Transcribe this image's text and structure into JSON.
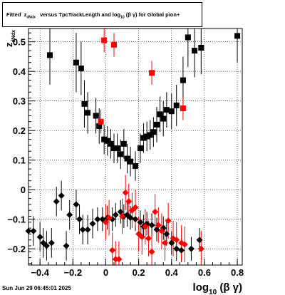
{
  "title": {
    "prefix": "Fitted",
    "z": "z",
    "z_sub": "dNdx",
    "middle": "versus TpcTrackLength and log",
    "log_sub": "10",
    "bg": "(β γ)",
    "suffix": "for Global pion+"
  },
  "footer": "Sun Jun 29 06:45:01 2025",
  "chart_data": {
    "type": "scatter",
    "xlabel": {
      "main": "log",
      "sub": "10",
      "rest": "(β γ)"
    },
    "ylabel": {
      "main": "z",
      "sub": "dNdx"
    },
    "xlim": [
      -0.47,
      0.83
    ],
    "ylim": [
      -0.255,
      0.545
    ],
    "x_ticks": [
      -0.4,
      -0.2,
      0,
      0.2,
      0.4,
      0.6,
      0.8
    ],
    "x_tick_labels": [
      "−0.4",
      "−0.2",
      "0",
      "0.2",
      "0.4",
      "0.6",
      "0.8"
    ],
    "y_ticks": [
      -0.2,
      -0.1,
      0,
      0.1,
      0.2,
      0.3,
      0.4,
      0.5
    ],
    "y_tick_labels": [
      "−0.2",
      "−0.1",
      "0",
      "0.1",
      "0.2",
      "0.3",
      "0.4",
      "0.5"
    ],
    "grid": true,
    "colors": {
      "black": "#000000",
      "red": "#ff0000"
    },
    "series": [
      {
        "marker": "square",
        "color": "#000000",
        "points": [
          [
            -0.34,
            0.455,
            0.1
          ],
          [
            -0.18,
            0.43,
            0.1
          ],
          [
            -0.15,
            0.41,
            0.09
          ],
          [
            -0.13,
            0.29,
            0.08
          ],
          [
            -0.11,
            0.26,
            0.07
          ],
          [
            -0.06,
            0.25,
            0.06
          ],
          [
            -0.04,
            0.215,
            0.06
          ],
          [
            -0.01,
            0.17,
            0.05
          ],
          [
            0.01,
            0.165,
            0.05
          ],
          [
            0.03,
            0.155,
            0.05
          ],
          [
            0.05,
            0.14,
            0.05
          ],
          [
            0.07,
            0.14,
            0.05
          ],
          [
            0.09,
            0.12,
            0.05
          ],
          [
            0.11,
            0.155,
            0.05
          ],
          [
            0.13,
            0.105,
            0.05
          ],
          [
            0.15,
            0.095,
            0.05
          ],
          [
            0.18,
            0.08,
            0.05
          ],
          [
            0.21,
            0.14,
            0.05
          ],
          [
            0.23,
            0.175,
            0.05
          ],
          [
            0.25,
            0.18,
            0.05
          ],
          [
            0.27,
            0.185,
            0.05
          ],
          [
            0.29,
            0.195,
            0.05
          ],
          [
            0.31,
            0.22,
            0.06
          ],
          [
            0.33,
            0.255,
            0.06
          ],
          [
            0.35,
            0.24,
            0.06
          ],
          [
            0.37,
            0.27,
            0.06
          ],
          [
            0.4,
            0.265,
            0.06
          ],
          [
            0.43,
            0.285,
            0.07
          ],
          [
            0.47,
            0.37,
            0.08
          ],
          [
            0.5,
            0.515,
            0.1
          ],
          [
            0.54,
            0.47,
            0.09
          ],
          [
            0.58,
            0.48,
            0.09
          ],
          [
            0.8,
            0.52,
            0.09
          ]
        ]
      },
      {
        "marker": "square",
        "color": "#ff0000",
        "points": [
          [
            -0.01,
            0.505,
            0.04
          ],
          [
            0.05,
            0.49,
            0.04
          ],
          [
            -0.03,
            0.23,
            0.04
          ],
          [
            0.28,
            0.395,
            0.04
          ],
          [
            0.47,
            0.275,
            0.04
          ]
        ]
      },
      {
        "marker": "diamond",
        "color": "#000000",
        "points": [
          [
            -0.47,
            -0.14,
            0.05
          ],
          [
            -0.44,
            -0.14,
            0.05
          ],
          [
            -0.4,
            -0.16,
            0.05
          ],
          [
            -0.38,
            -0.18,
            0.05
          ],
          [
            -0.36,
            -0.19,
            0.05
          ],
          [
            -0.33,
            -0.18,
            0.05
          ],
          [
            -0.3,
            -0.04,
            0.05
          ],
          [
            -0.27,
            -0.02,
            0.05
          ],
          [
            -0.24,
            -0.19,
            0.05
          ],
          [
            -0.22,
            -0.085,
            0.05
          ],
          [
            -0.18,
            -0.05,
            0.05
          ],
          [
            -0.16,
            -0.1,
            0.05
          ],
          [
            -0.14,
            -0.135,
            0.05
          ],
          [
            -0.11,
            -0.135,
            0.05
          ],
          [
            -0.08,
            -0.115,
            0.05
          ],
          [
            -0.05,
            -0.1,
            0.04
          ],
          [
            -0.02,
            -0.1,
            0.04
          ],
          [
            0.01,
            -0.095,
            0.04
          ],
          [
            0.04,
            -0.1,
            0.04
          ],
          [
            0.06,
            -0.085,
            0.04
          ],
          [
            0.09,
            -0.075,
            0.04
          ],
          [
            0.11,
            -0.09,
            0.04
          ],
          [
            0.13,
            -0.085,
            0.04
          ],
          [
            0.15,
            -0.095,
            0.04
          ],
          [
            0.18,
            -0.1,
            0.04
          ],
          [
            0.21,
            -0.11,
            0.04
          ],
          [
            0.23,
            -0.125,
            0.04
          ],
          [
            0.25,
            -0.115,
            0.04
          ],
          [
            0.28,
            -0.12,
            0.04
          ],
          [
            0.31,
            -0.135,
            0.04
          ],
          [
            0.35,
            -0.13,
            0.04
          ],
          [
            0.37,
            -0.15,
            0.04
          ],
          [
            0.4,
            -0.18,
            0.04
          ],
          [
            0.43,
            -0.2,
            0.04
          ],
          [
            0.46,
            -0.205,
            0.04
          ],
          [
            0.52,
            -0.2,
            0.04
          ],
          [
            0.57,
            -0.17,
            0.04
          ]
        ]
      },
      {
        "marker": "diamond",
        "color": "#ff0000",
        "points": [
          [
            0.0,
            -0.11,
            0.06
          ],
          [
            0.02,
            -0.095,
            0.06
          ],
          [
            0.04,
            -0.205,
            0.06
          ],
          [
            0.06,
            -0.235,
            0.06
          ],
          [
            0.08,
            -0.235,
            0.06
          ],
          [
            0.1,
            -0.09,
            0.06
          ],
          [
            0.12,
            -0.01,
            0.06
          ],
          [
            0.14,
            -0.04,
            0.06
          ],
          [
            0.16,
            -0.07,
            0.06
          ],
          [
            0.18,
            -0.06,
            0.06
          ],
          [
            0.2,
            -0.15,
            0.06
          ],
          [
            0.22,
            -0.16,
            0.06
          ],
          [
            0.24,
            -0.125,
            0.06
          ],
          [
            0.26,
            -0.165,
            0.06
          ],
          [
            0.28,
            -0.21,
            0.06
          ],
          [
            0.3,
            -0.075,
            0.06
          ],
          [
            0.32,
            -0.12,
            0.06
          ],
          [
            0.34,
            -0.14,
            0.06
          ],
          [
            0.36,
            -0.18,
            0.06
          ],
          [
            0.38,
            -0.105,
            0.06
          ],
          [
            0.41,
            -0.165,
            0.06
          ],
          [
            0.43,
            -0.17,
            0.06
          ],
          [
            0.46,
            -0.18,
            0.06
          ],
          [
            0.48,
            -0.185,
            0.06
          ],
          [
            0.58,
            -0.2,
            0.06
          ]
        ]
      }
    ]
  }
}
